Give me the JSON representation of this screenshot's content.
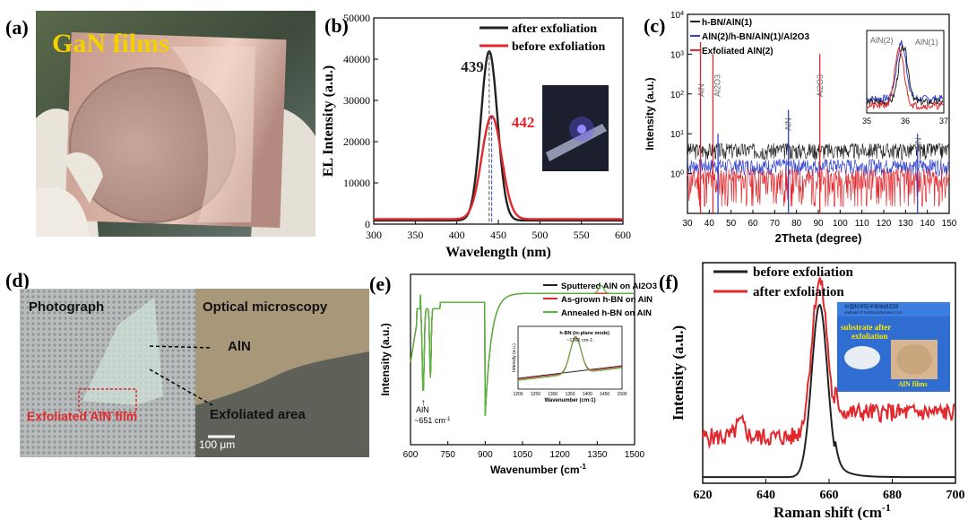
{
  "figure": {
    "panels": {
      "a": {
        "label": "(a)",
        "title": "GaN films"
      },
      "b": {
        "label": "(b)"
      },
      "c": {
        "label": "(c)"
      },
      "d": {
        "label": "(d)",
        "left_title": "Photograph",
        "right_title": "Optical microscopy",
        "aln_label": "AlN",
        "film_label": "Exfoliated AlN film",
        "area_label": "Exfoliated area",
        "scale_label": "100 μm"
      },
      "e": {
        "label": "(e)"
      },
      "f": {
        "label": "(f)",
        "inset_text": "substrate after exfoliation",
        "inset_film": "AlN films",
        "inset_header": "中国科学院半导体研究所",
        "inset_header_en": "Institute of Semiconductors CAS"
      }
    }
  },
  "colors": {
    "black": "#222222",
    "red": "#e0282d",
    "blue": "#3344cc",
    "green": "#4cbf3c"
  },
  "chart_data": [
    {
      "id": "b",
      "type": "line",
      "xlabel": "Wavelength (nm)",
      "ylabel": "EL Intensity (a.u.)",
      "xlim": [
        300,
        600
      ],
      "ylim": [
        0,
        50000
      ],
      "xticks": [
        300,
        350,
        400,
        450,
        500,
        550,
        600
      ],
      "yticks": [
        0,
        10000,
        20000,
        30000,
        40000,
        50000
      ],
      "series": [
        {
          "name": "after exfoliation",
          "color": "#222222",
          "peak": 439,
          "amplitude": 41000,
          "width": 10,
          "baseline": 900
        },
        {
          "name": "before exfoliation",
          "color": "#e0282d",
          "peak": 442,
          "amplitude": 25000,
          "width": 12,
          "baseline": 1200
        }
      ],
      "annotations": [
        {
          "text": "439",
          "color": "#222222"
        },
        {
          "text": "442",
          "color": "#e0282d"
        }
      ]
    },
    {
      "id": "c",
      "type": "line",
      "xlabel": "2Theta (degree)",
      "ylabel": "Intensity (a.u.)",
      "yscale": "log",
      "xlim": [
        30,
        150
      ],
      "ylim": [
        0.1,
        10000
      ],
      "xticks": [
        30,
        40,
        50,
        60,
        70,
        80,
        90,
        100,
        110,
        120,
        130,
        140,
        150
      ],
      "yticks": [
        "10^0",
        "10^1",
        "10^2",
        "10^3",
        "10^4"
      ],
      "series": [
        {
          "name": "h-BN/AlN(1)",
          "color": "#222222"
        },
        {
          "name": "AlN(2)/h-BN/AlN(1)/Al2O3",
          "color": "#3344cc"
        },
        {
          "name": "Exfoliated AlN(2)",
          "color": "#e0282d"
        }
      ],
      "peak_labels": [
        "AlN",
        "Al2O3",
        "AlN",
        "Al2O3",
        "AlN"
      ],
      "inset": {
        "xlim": [
          35,
          37
        ],
        "xticks": [
          35,
          36,
          37
        ],
        "labels": [
          "AlN(2)",
          "AlN(1)"
        ]
      }
    },
    {
      "id": "e",
      "type": "line",
      "xlabel": "Wavenumber (cm-1)",
      "ylabel": "Intensity (a.u.)",
      "xlim": [
        600,
        1500
      ],
      "xticks": [
        600,
        750,
        900,
        1050,
        1200,
        1350,
        1500
      ],
      "series": [
        {
          "name": "Sputtered AlN on Al2O3",
          "color": "#222222"
        },
        {
          "name": "As-grown h-BN on AlN",
          "color": "#e0282d"
        },
        {
          "name": "Annealed h-BN on AlN",
          "color": "#4cbf3c"
        }
      ],
      "annotations": [
        {
          "text": "AlN"
        },
        {
          "text": "~651 cm-1"
        }
      ],
      "inset": {
        "xlim": [
          1200,
          1500
        ],
        "xticks": [
          1200,
          1250,
          1300,
          1350,
          1400,
          1450,
          1500
        ],
        "xlabel": "Wavenumber (cm-1)",
        "ylabel": "Intensity (a.u.)",
        "note": "h-BN (in-plane mode)",
        "note2": "~1366 cm-1"
      }
    },
    {
      "id": "f",
      "type": "line",
      "xlabel": "Raman shift (cm-1)",
      "ylabel": "Intensity (a.u.)",
      "xlim": [
        620,
        700
      ],
      "xticks": [
        620,
        640,
        660,
        680,
        700
      ],
      "series": [
        {
          "name": "before exfoliation",
          "color": "#222222"
        },
        {
          "name": "after exfoliation",
          "color": "#e0282d"
        }
      ]
    }
  ]
}
